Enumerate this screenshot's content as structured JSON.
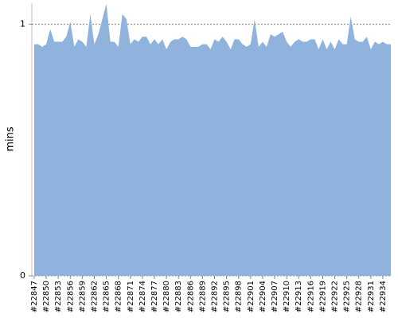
{
  "chart_data": {
    "type": "area",
    "y_label": "mins",
    "categories": [
      "#22847",
      null,
      null,
      "#22850",
      null,
      null,
      "#22853",
      null,
      null,
      "#22856",
      null,
      null,
      "#22859",
      null,
      null,
      "#22862",
      null,
      null,
      "#22865",
      null,
      null,
      "#22868",
      null,
      null,
      "#22871",
      null,
      null,
      "#22874",
      null,
      null,
      "#22877",
      null,
      null,
      "#22880",
      null,
      null,
      "#22883",
      null,
      null,
      "#22886",
      null,
      null,
      "#22889",
      null,
      null,
      "#22892",
      null,
      null,
      "#22895",
      null,
      null,
      "#22898",
      null,
      null,
      "#22901",
      null,
      null,
      "#22904",
      null,
      null,
      "#22907",
      null,
      null,
      "#22910",
      null,
      null,
      "#22913",
      null,
      null,
      "#22916",
      null,
      null,
      "#22919",
      null,
      null,
      "#22922",
      null,
      null,
      "#22925",
      null,
      null,
      "#22928",
      null,
      null,
      "#22931",
      null,
      null,
      "#22934",
      null,
      null
    ],
    "values": [
      0.92,
      0.92,
      0.91,
      0.92,
      0.98,
      0.93,
      0.93,
      0.93,
      0.95,
      1.01,
      0.91,
      0.94,
      0.93,
      0.91,
      1.04,
      0.92,
      0.96,
      1.02,
      1.08,
      0.93,
      0.93,
      0.91,
      1.04,
      1.02,
      0.92,
      0.94,
      0.93,
      0.95,
      0.95,
      0.92,
      0.94,
      0.92,
      0.94,
      0.9,
      0.93,
      0.94,
      0.94,
      0.95,
      0.94,
      0.91,
      0.91,
      0.91,
      0.92,
      0.92,
      0.9,
      0.94,
      0.93,
      0.95,
      0.93,
      0.9,
      0.94,
      0.94,
      0.92,
      0.91,
      0.92,
      1.02,
      0.91,
      0.93,
      0.91,
      0.96,
      0.95,
      0.96,
      0.97,
      0.93,
      0.91,
      0.93,
      0.94,
      0.93,
      0.93,
      0.94,
      0.94,
      0.9,
      0.94,
      0.9,
      0.93,
      0.9,
      0.94,
      0.92,
      0.92,
      1.03,
      0.94,
      0.93,
      0.93,
      0.95,
      0.9,
      0.93,
      0.92,
      0.93,
      0.92,
      0.92
    ],
    "color": "#8fb3dc",
    "ylim": [
      0,
      1.08
    ],
    "yticks": [
      0,
      1
    ],
    "grid": true
  }
}
